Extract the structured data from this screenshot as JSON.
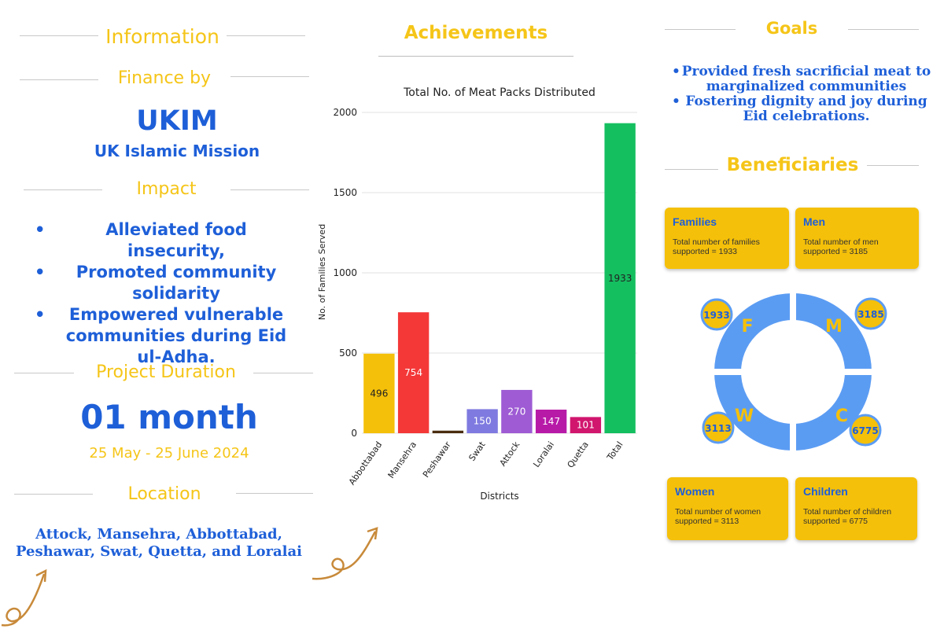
{
  "left": {
    "information_title": "Information",
    "finance_title": "Finance by",
    "org_short": "UKIM",
    "org_full": "UK Islamic Mission",
    "impact_title": "Impact",
    "impact_items": [
      "Alleviated food insecurity,",
      "Promoted community solidarity",
      "Empowered vulnerable communities during Eid ul-Adha."
    ],
    "duration_title": "Project Duration",
    "duration_value": "01 month",
    "duration_dates": "25 May - 25 June 2024",
    "location_title": "Location",
    "location_line1": "Attock, Mansehra, Abbottabad,",
    "location_line2": "Peshawar, Swat, Quetta, and Loralai"
  },
  "middle": {
    "achievements_title": "Achievements"
  },
  "chart_data": {
    "type": "bar",
    "title": "Total No. of Meat Packs Distributed",
    "xlabel": "Districts",
    "ylabel": "No. of Families Served",
    "ylim": [
      0,
      2000
    ],
    "yticks": [
      0,
      500,
      1000,
      1500,
      2000
    ],
    "categories": [
      "Abbottabad",
      "Mansehra",
      "Peshawar",
      "Swat",
      "Attock",
      "Loralai",
      "Quetta",
      "Total"
    ],
    "values": [
      496,
      754,
      16,
      150,
      270,
      147,
      101,
      1933
    ],
    "data_labels": [
      "496",
      "754",
      "",
      "150",
      "270",
      "147",
      "101",
      "1933"
    ],
    "colors": [
      "#f5c009",
      "#f43838",
      "#4a2e10",
      "#7e7ae0",
      "#9e5bd4",
      "#b81aa8",
      "#d1166e",
      "#14bf60"
    ],
    "label_colors": [
      "#222222",
      "#ffffff",
      "#ffffff",
      "#ffffff",
      "#ffffff",
      "#ffffff",
      "#ffffff",
      "#222222"
    ],
    "grid": true,
    "legend": "none"
  },
  "right": {
    "goals_title": "Goals",
    "goals": [
      "Provided fresh sacrificial meat to marginalized communities",
      "Fostering dignity and joy during Eid celebrations."
    ],
    "beneficiaries_title": "Beneficiaries",
    "cards": {
      "families": {
        "title": "Families",
        "text": "Total number of families supported = 1933"
      },
      "men": {
        "title": "Men",
        "text": "Total number of men supported = 3185"
      },
      "women": {
        "title": "Women",
        "text": "Total number of women supported = 3113"
      },
      "children": {
        "title": "Children",
        "text": "Total number of children supported = 6775"
      }
    },
    "ring": {
      "f": {
        "letter": "F",
        "value": "1933"
      },
      "m": {
        "letter": "M",
        "value": "3185"
      },
      "w": {
        "letter": "W",
        "value": "3113"
      },
      "c": {
        "letter": "C",
        "value": "6775"
      }
    },
    "colors": {
      "blue": "#5b9cf3",
      "yellow": "#f5c009",
      "text_blue": "#1e5fd8"
    }
  }
}
